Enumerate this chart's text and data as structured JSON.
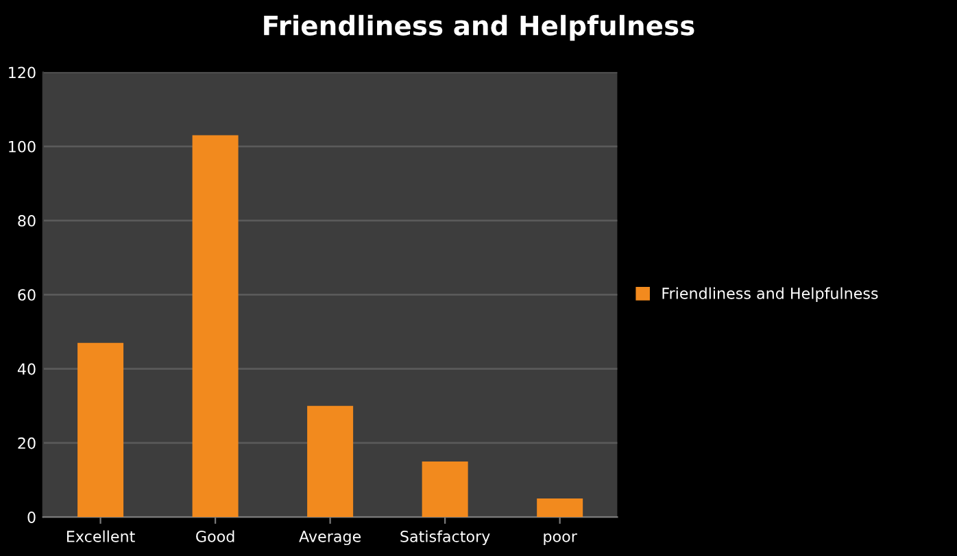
{
  "chart_data": {
    "type": "bar",
    "title": "Friendliness and Helpfulness",
    "categories": [
      "Excellent",
      "Good",
      "Average",
      "Satisfactory",
      "poor"
    ],
    "series": [
      {
        "name": "Friendliness and Helpfulness",
        "color": "#f28a1e",
        "values": [
          47,
          103,
          30,
          15,
          5
        ]
      }
    ],
    "ylim": [
      0,
      120
    ],
    "yticks": [
      0,
      20,
      40,
      60,
      80,
      100,
      120
    ],
    "grid": "y",
    "legend": "right"
  }
}
